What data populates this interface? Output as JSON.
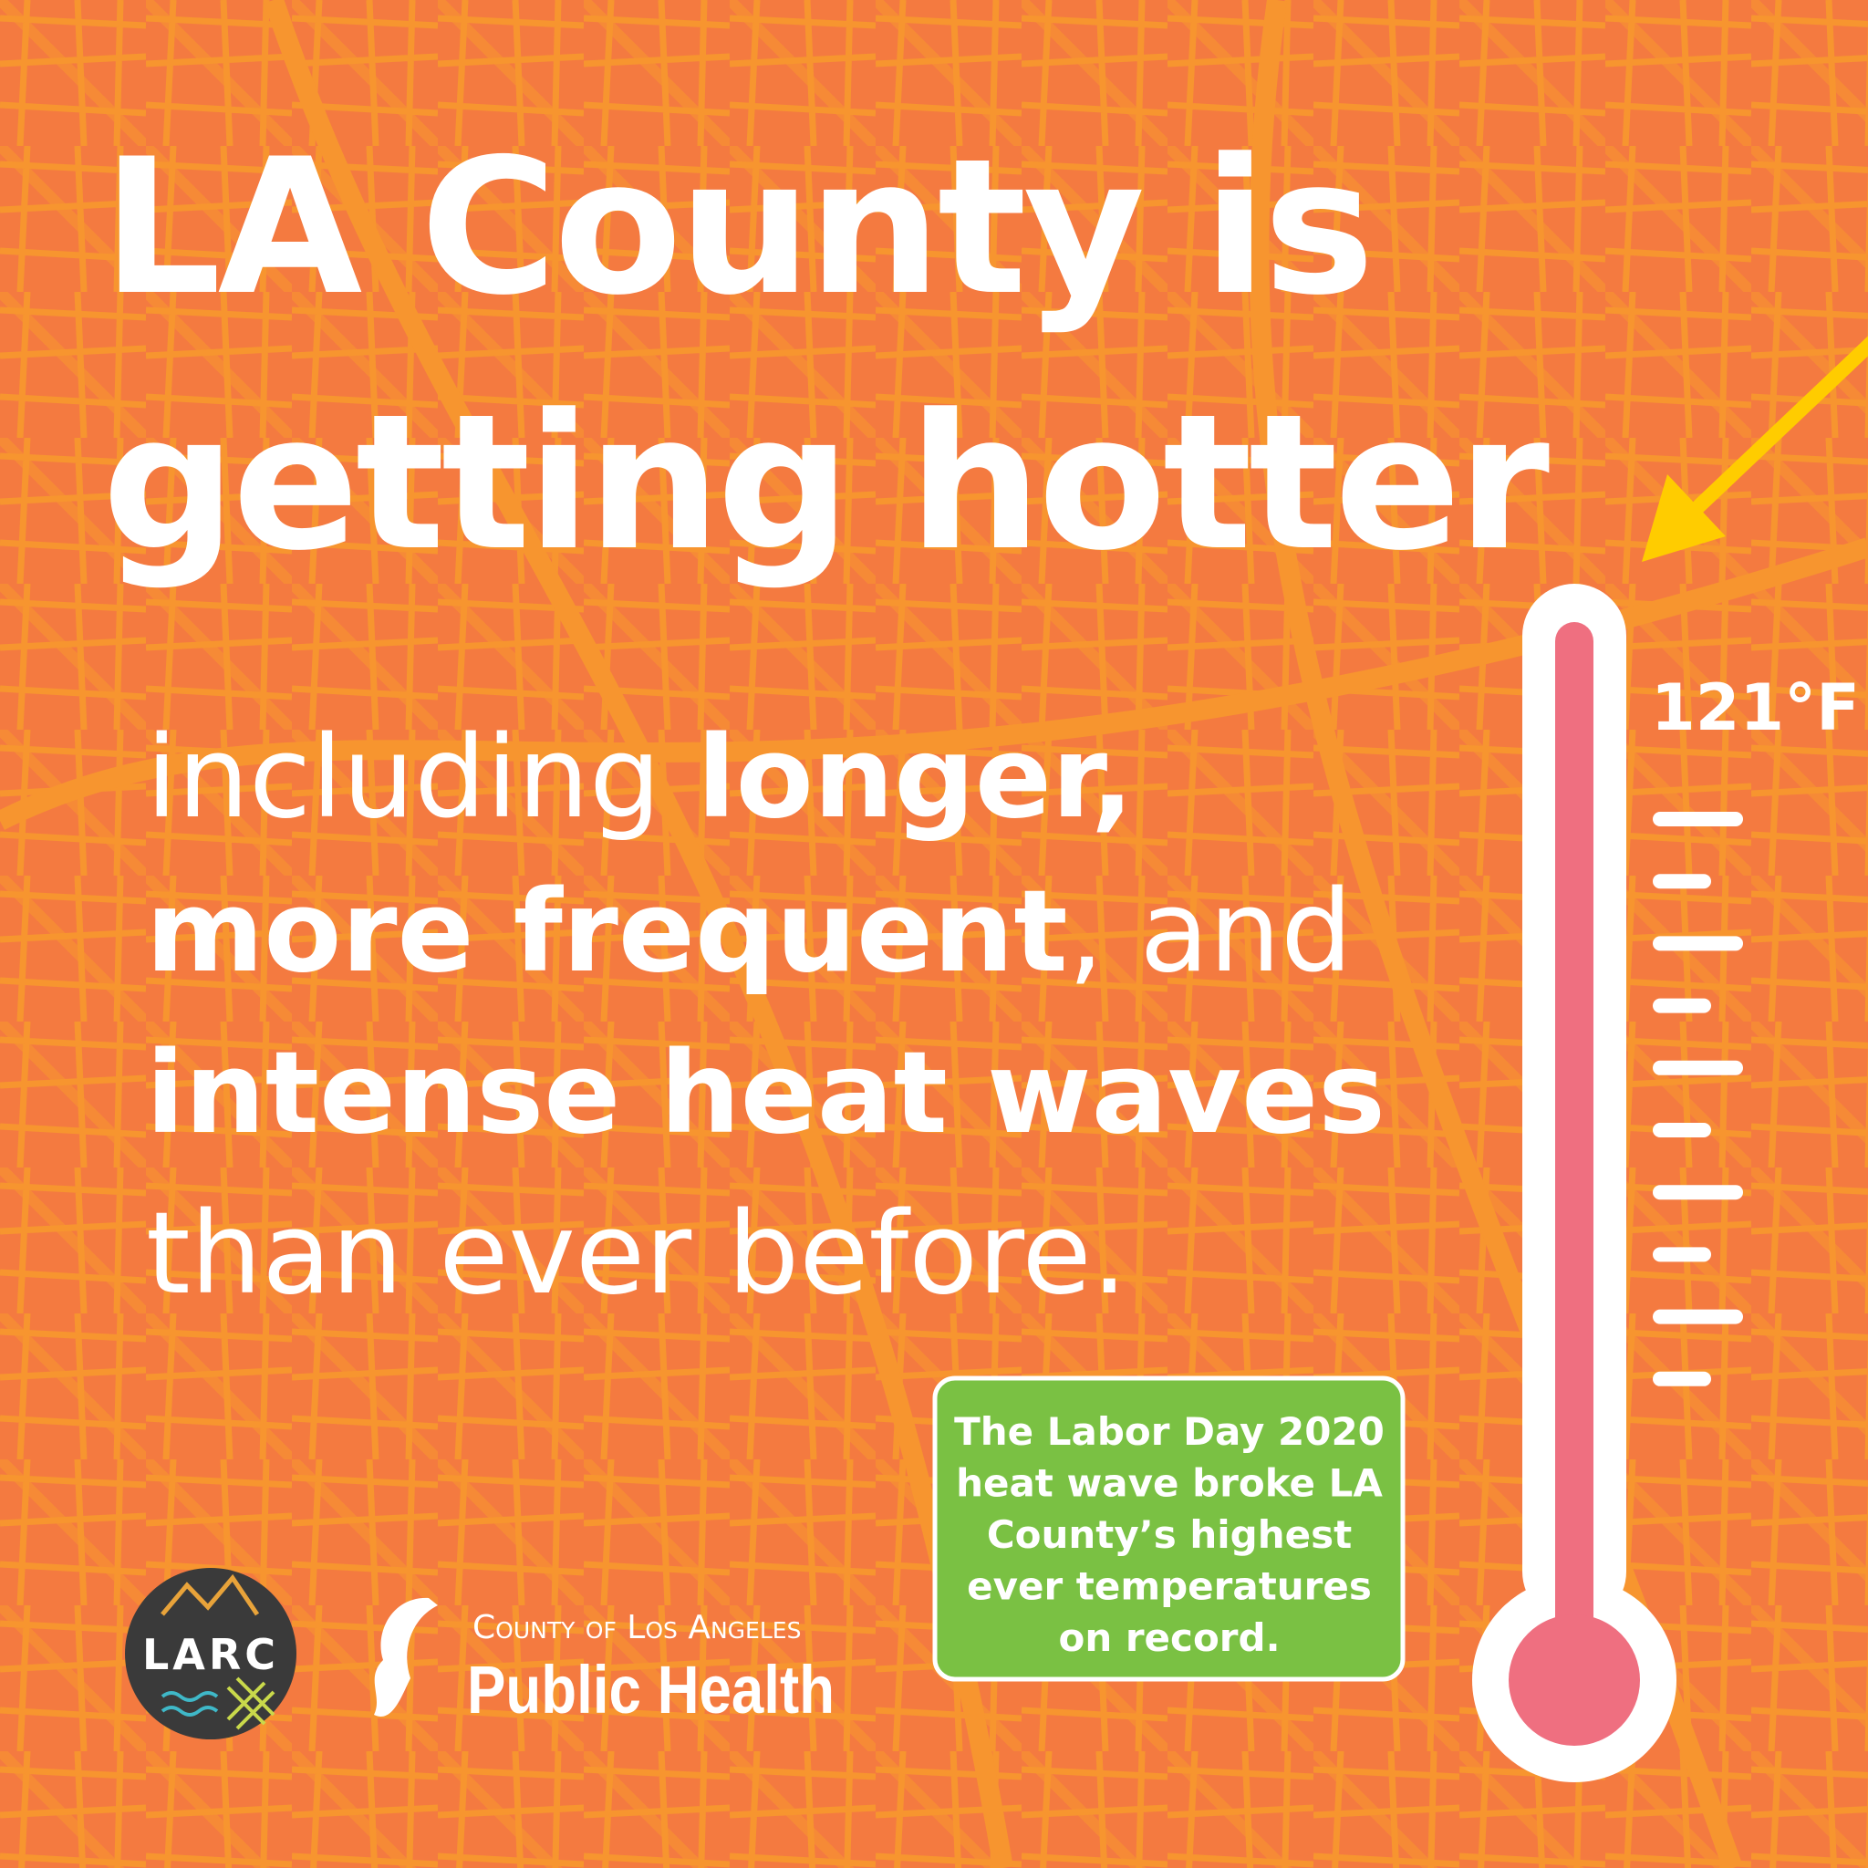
{
  "headline": [
    "LA County is",
    "getting hotter"
  ],
  "body": [
    [
      {
        "text": "including ",
        "bold": false
      },
      {
        "text": "longer,",
        "bold": true
      }
    ],
    [
      {
        "text": "more frequent",
        "bold": true
      },
      {
        "text": ", and",
        "bold": false
      }
    ],
    [
      {
        "text": "intense heat waves",
        "bold": true
      }
    ],
    [
      {
        "text": "than ever before.",
        "bold": false
      }
    ]
  ],
  "thermometer": {
    "label": "121°F"
  },
  "callout": [
    "The Labor Day 2020",
    "heat wave broke LA",
    "County’s highest",
    "ever temperatures",
    "on record."
  ],
  "logos": {
    "larc": "LARC",
    "agency_line": "County of Los Angeles",
    "agency_name": "Public Health"
  }
}
